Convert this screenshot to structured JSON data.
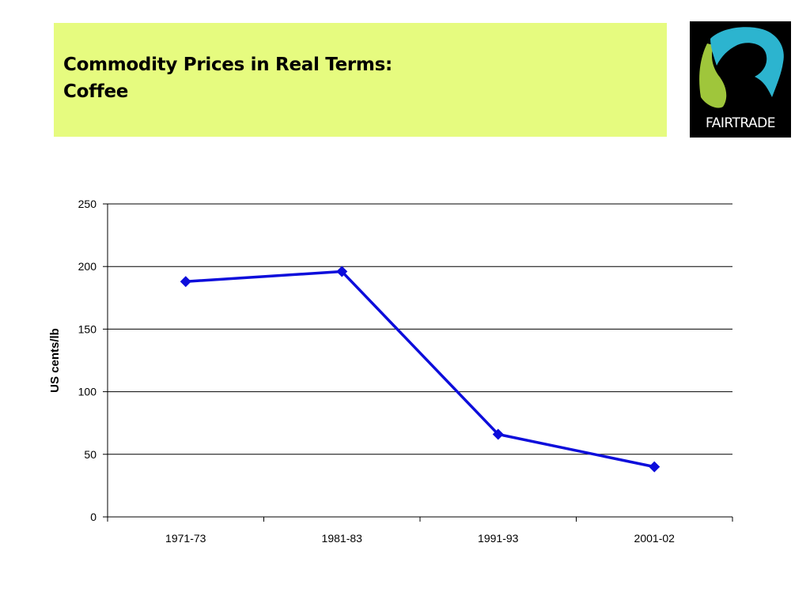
{
  "slide": {
    "title_line1": "Commodity Prices in Real Terms:",
    "title_line2": "Coffee",
    "colors": {
      "title_band": "#e6fb7f",
      "series": "#0d0ddb"
    }
  },
  "logo": {
    "text": "FAIRTRADE",
    "icon": "fairtrade-mark-icon"
  },
  "chart_data": {
    "type": "line",
    "categories": [
      "1971-73",
      "1981-83",
      "1991-93",
      "2001-02"
    ],
    "series": [
      {
        "values": [
          188,
          196,
          66,
          40
        ]
      }
    ],
    "ylabel": "US cents/lb",
    "xlabel": "",
    "ylim": [
      0,
      250
    ],
    "yticks": [
      0,
      50,
      100,
      150,
      200,
      250
    ],
    "grid": true,
    "marker": "diamond",
    "legend": "none"
  }
}
